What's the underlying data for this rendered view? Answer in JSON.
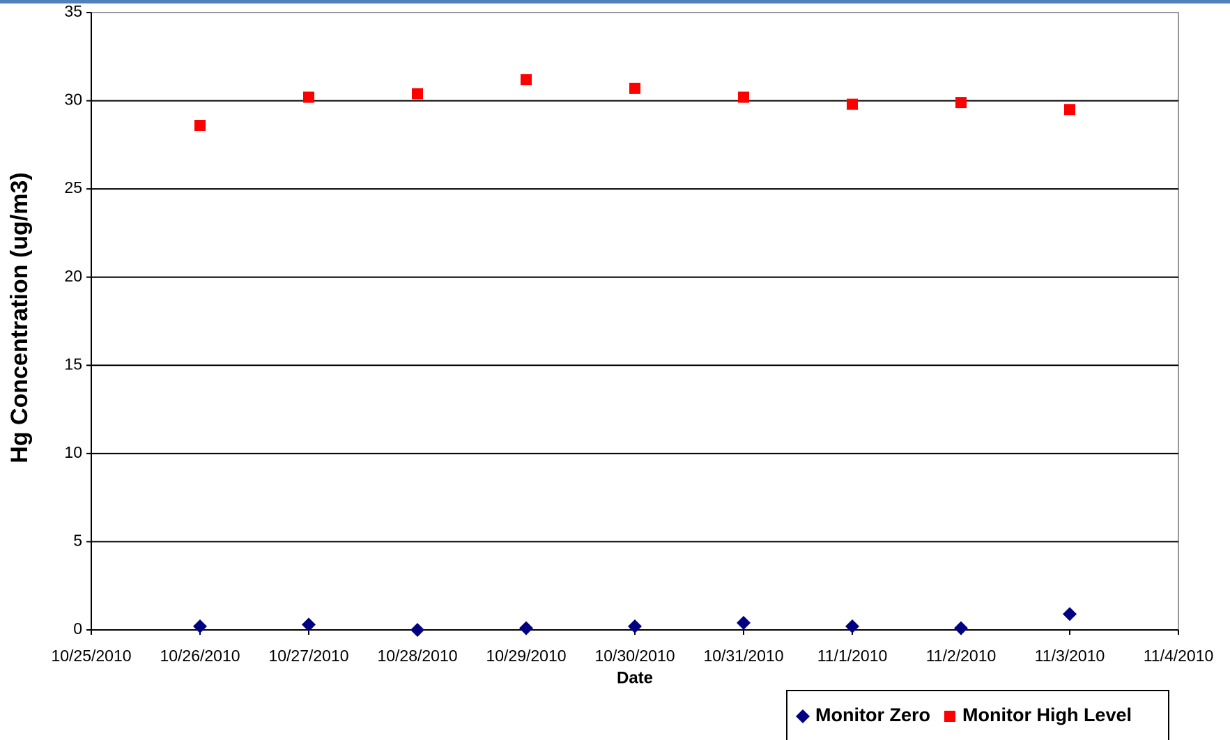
{
  "chart_data": {
    "type": "scatter",
    "y_label": "Hg Concentration (ug/m3)",
    "x_label": "Date",
    "x": [
      "10/26/2010",
      "10/27/2010",
      "10/28/2010",
      "10/29/2010",
      "10/30/2010",
      "10/31/2010",
      "11/1/2010",
      "11/2/2010",
      "11/3/2010"
    ],
    "series": [
      {
        "name": "Monitor Zero",
        "color": "#000080",
        "marker": "diamond",
        "values": [
          0.2,
          0.3,
          0.0,
          0.1,
          0.2,
          0.4,
          0.2,
          0.1,
          0.9
        ]
      },
      {
        "name": "Monitor High Level",
        "color": "#ff0000",
        "marker": "square",
        "values": [
          28.6,
          30.2,
          30.4,
          31.2,
          30.7,
          30.2,
          29.8,
          29.9,
          29.5
        ]
      }
    ],
    "xlim": [
      "10/25/2010",
      "11/4/2010"
    ],
    "xticks": [
      "10/25/2010",
      "10/26/2010",
      "10/27/2010",
      "10/28/2010",
      "10/29/2010",
      "10/30/2010",
      "10/31/2010",
      "11/1/2010",
      "11/2/2010",
      "11/3/2010",
      "11/4/2010"
    ],
    "ylim": [
      0,
      35
    ],
    "yticks": [
      0,
      5,
      10,
      15,
      20,
      25,
      30,
      35
    ],
    "grid": true
  }
}
